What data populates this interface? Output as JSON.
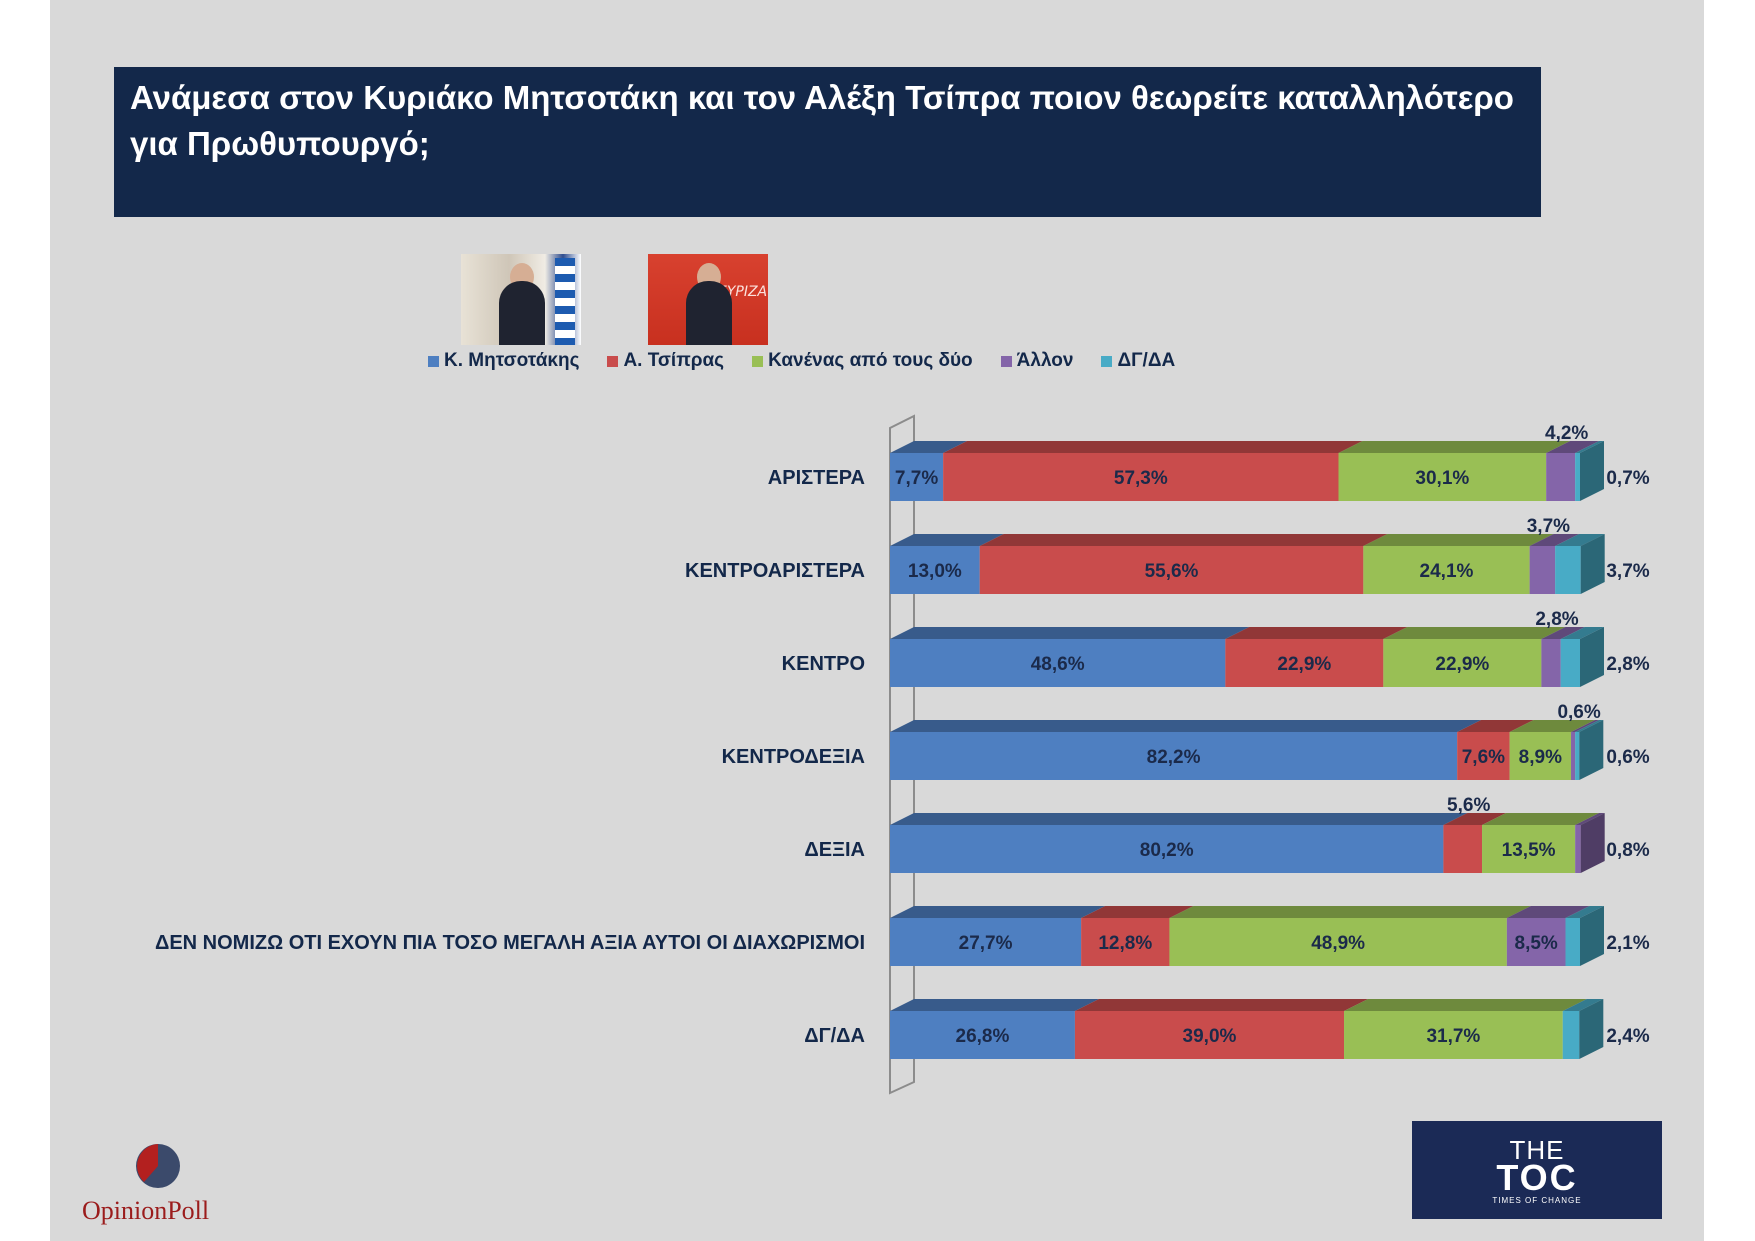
{
  "title": "Ανάμεσα στον Κυριάκο Μητσοτάκη και τον Αλέξη Τσίπρα ποιον θεωρείτε καταλληλότερο για Πρωθυπουργό;",
  "photos": {
    "photo_1_description": "Κ. Μητσοτάκης",
    "photo_2_text": "ΣΥΡΙΖΑ"
  },
  "colors": {
    "title_bg": "#13284a",
    "background": "#d9d9d9",
    "series": [
      "#4e7fc1",
      "#c94c4c",
      "#99bf55",
      "#8465a9",
      "#48abc6"
    ]
  },
  "chart_data": {
    "type": "bar",
    "orientation": "horizontal",
    "stacked": true,
    "percent_scale": true,
    "legend_position": "top",
    "categories": [
      "ΑΡΙΣΤΕΡΑ",
      "ΚΕΝΤΡΟΑΡΙΣΤΕΡΑ",
      "ΚΕΝΤΡΟ",
      "ΚΕΝΤΡΟΔΕΞΙΑ",
      "ΔΕΞΙΑ",
      "ΔΕΝ ΝΟΜΙΖΩ ΟΤΙ ΕΧΟΥΝ ΠΙΑ ΤΟΣΟ ΜΕΓΑΛΗ ΑΞΙΑ ΑΥΤΟΙ ΟΙ ΔΙΑΧΩΡΙΣΜΟΙ",
      "ΔΓ/ΔΑ"
    ],
    "series": [
      {
        "name": "Κ. Μητσοτάκης",
        "values": [
          7.7,
          13.0,
          48.6,
          82.2,
          80.2,
          27.7,
          26.8
        ],
        "labels": [
          "7,7%",
          "13,0%",
          "48,6%",
          "82,2%",
          "80,2%",
          "27,7%",
          "26,8%"
        ]
      },
      {
        "name": "Α. Τσίπρας",
        "values": [
          57.3,
          55.6,
          22.9,
          7.6,
          5.6,
          12.8,
          39.0
        ],
        "labels": [
          "57,3%",
          "55,6%",
          "22,9%",
          "7,6%",
          "5,6%",
          "12,8%",
          "39,0%"
        ]
      },
      {
        "name": "Κανένας από τους δύο",
        "values": [
          30.1,
          24.1,
          22.9,
          8.9,
          13.5,
          48.9,
          31.7
        ],
        "labels": [
          "30,1%",
          "24,1%",
          "22,9%",
          "8,9%",
          "13,5%",
          "48,9%",
          "31,7%"
        ]
      },
      {
        "name": "Άλλον",
        "values": [
          4.2,
          3.7,
          2.8,
          0.6,
          0.8,
          8.5,
          0
        ],
        "labels": [
          "4,2%",
          "3,7%",
          "2,8%",
          "0,6%",
          "0,8%",
          "8,5%",
          ""
        ]
      },
      {
        "name": "ΔΓ/ΔΑ",
        "values": [
          0.7,
          3.7,
          2.8,
          0.6,
          0,
          2.1,
          2.4
        ],
        "labels": [
          "0,7%",
          "3,7%",
          "2,8%",
          "0,6%",
          "",
          "2,1%",
          "2,4%"
        ]
      }
    ]
  },
  "logos": {
    "opinion_poll": "OpinionPoll",
    "toc_the": "THE",
    "toc_main": "TOC",
    "toc_sub": "TIMES OF CHANGE"
  }
}
